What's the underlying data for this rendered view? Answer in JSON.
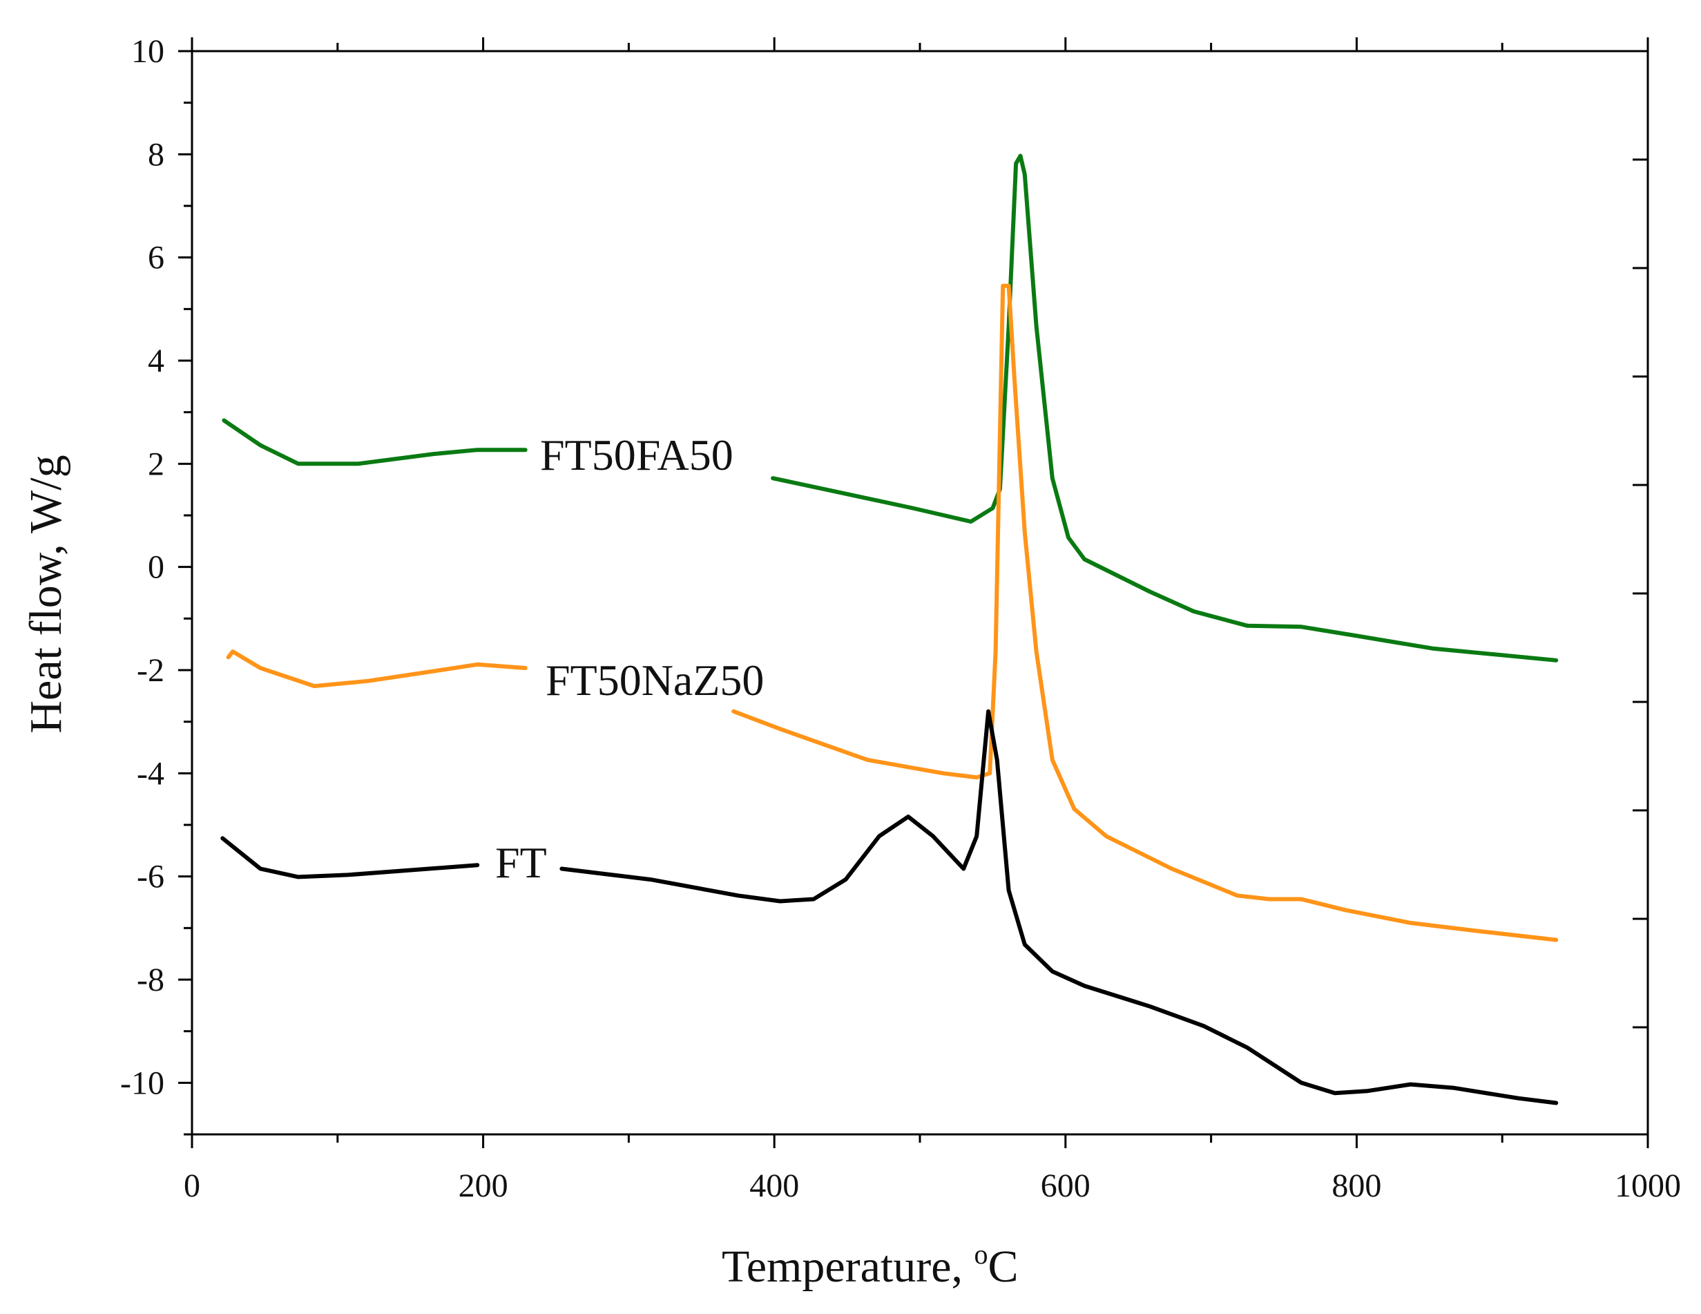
{
  "chart_data": {
    "type": "line",
    "title": "",
    "xlabel": "Temperature, °C",
    "xlabel_main": "Temperature, ",
    "xlabel_sup": "o",
    "xlabel_unit": "C",
    "ylabel": "Heat flow, W/g",
    "xlim": [
      0,
      1000
    ],
    "ylim": [
      -11,
      10
    ],
    "x_ticks": [
      "0",
      "200",
      "400",
      "600",
      "800",
      "1000"
    ],
    "y_ticks": [
      "10",
      "8",
      "6",
      "4",
      "2",
      "0",
      "-2",
      "-4",
      "-6",
      "-8",
      "-10"
    ],
    "grid": false,
    "legend": "inline labels",
    "series": [
      {
        "name": "FT50FA50",
        "color": "#0a7a12",
        "segments": [
          [
            [
              22,
              2.84
            ],
            [
              47,
              2.36
            ],
            [
              73,
              2.0
            ],
            [
              114,
              2.0
            ],
            [
              166,
              2.19
            ],
            [
              196,
              2.27
            ],
            [
              229,
              2.27
            ]
          ],
          [
            [
              399,
              1.72
            ],
            [
              434,
              1.51
            ],
            [
              495,
              1.14
            ],
            [
              535,
              0.88
            ],
            [
              550,
              1.14
            ],
            [
              555,
              1.51
            ],
            [
              561,
              4.67
            ],
            [
              566,
              7.82
            ],
            [
              569,
              7.97
            ],
            [
              572,
              7.61
            ],
            [
              580,
              4.67
            ],
            [
              591,
              1.72
            ],
            [
              602,
              0.57
            ],
            [
              613,
              0.15
            ],
            [
              658,
              -0.48
            ],
            [
              688,
              -0.86
            ],
            [
              725,
              -1.14
            ],
            [
              762,
              -1.16
            ],
            [
              799,
              -1.33
            ],
            [
              852,
              -1.58
            ],
            [
              937,
              -1.81
            ]
          ]
        ]
      },
      {
        "name": "FT50NaZ50",
        "color": "#ff9419",
        "segments": [
          [
            [
              25,
              -1.75
            ],
            [
              28,
              -1.64
            ],
            [
              47,
              -1.96
            ],
            [
              84,
              -2.31
            ],
            [
              121,
              -2.21
            ],
            [
              166,
              -2.02
            ],
            [
              196,
              -1.89
            ],
            [
              229,
              -1.96
            ]
          ],
          [
            [
              372,
              -2.8
            ],
            [
              405,
              -3.15
            ],
            [
              464,
              -3.74
            ],
            [
              516,
              -4.0
            ],
            [
              539,
              -4.08
            ],
            [
              548,
              -4.0
            ],
            [
              552,
              -1.64
            ],
            [
              557,
              5.45
            ],
            [
              561,
              5.45
            ],
            [
              565,
              3.62
            ],
            [
              572,
              0.67
            ],
            [
              580,
              -1.64
            ],
            [
              591,
              -3.74
            ],
            [
              606,
              -4.69
            ],
            [
              628,
              -5.22
            ],
            [
              673,
              -5.85
            ],
            [
              718,
              -6.37
            ],
            [
              740,
              -6.44
            ],
            [
              762,
              -6.44
            ],
            [
              792,
              -6.65
            ],
            [
              837,
              -6.9
            ],
            [
              881,
              -7.05
            ],
            [
              937,
              -7.23
            ]
          ]
        ]
      },
      {
        "name": "FT",
        "color": "#000000",
        "segments": [
          [
            [
              21,
              -5.26
            ],
            [
              47,
              -5.85
            ],
            [
              73,
              -6.01
            ],
            [
              107,
              -5.97
            ],
            [
              196,
              -5.78
            ]
          ],
          [
            [
              254,
              -5.85
            ],
            [
              315,
              -6.06
            ],
            [
              375,
              -6.37
            ],
            [
              404,
              -6.48
            ],
            [
              427,
              -6.44
            ],
            [
              449,
              -6.06
            ],
            [
              472,
              -5.22
            ],
            [
              492,
              -4.84
            ],
            [
              509,
              -5.22
            ],
            [
              530,
              -5.85
            ],
            [
              539,
              -5.22
            ],
            [
              547,
              -2.8
            ],
            [
              553,
              -3.74
            ],
            [
              561,
              -6.27
            ],
            [
              572,
              -7.32
            ],
            [
              591,
              -7.84
            ],
            [
              613,
              -8.12
            ],
            [
              658,
              -8.52
            ],
            [
              695,
              -8.9
            ],
            [
              725,
              -9.32
            ],
            [
              762,
              -10.0
            ],
            [
              785,
              -10.2
            ],
            [
              807,
              -10.16
            ],
            [
              837,
              -10.03
            ],
            [
              867,
              -10.1
            ],
            [
              911,
              -10.3
            ],
            [
              937,
              -10.39
            ]
          ]
        ]
      }
    ]
  }
}
